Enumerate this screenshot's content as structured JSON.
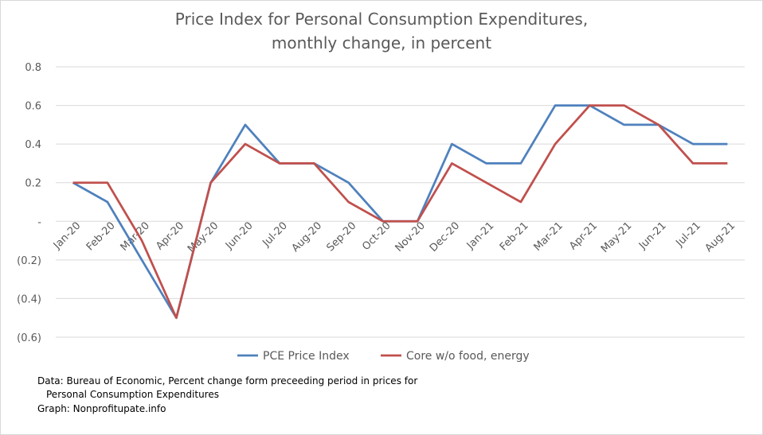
{
  "chart_data": {
    "type": "line",
    "title_line1": "Price Index for Personal Consumption Expenditures,",
    "title_line2": "monthly change, in percent",
    "categories": [
      "Jan-20",
      "Feb-20",
      "Mar-20",
      "Apr-20",
      "May-20",
      "Jun-20",
      "Jul-20",
      "Aug-20",
      "Sep-20",
      "Oct-20",
      "Nov-20",
      "Dec-20",
      "Jan-21",
      "Feb-21",
      "Mar-21",
      "Apr-21",
      "May-21",
      "Jun-21",
      "Jul-21",
      "Aug-21"
    ],
    "series": [
      {
        "name": "PCE Price Index",
        "color": "#4f81bd",
        "values": [
          0.2,
          0.1,
          -0.2,
          -0.5,
          0.2,
          0.5,
          0.3,
          0.3,
          0.2,
          0.0,
          0.0,
          0.4,
          0.3,
          0.3,
          0.6,
          0.6,
          0.5,
          0.5,
          0.4,
          0.4
        ]
      },
      {
        "name": "Core w/o food, energy",
        "color": "#c0504d",
        "values": [
          0.2,
          0.2,
          -0.1,
          -0.5,
          0.2,
          0.4,
          0.3,
          0.3,
          0.1,
          0.0,
          0.0,
          0.3,
          0.2,
          0.1,
          0.4,
          0.6,
          0.6,
          0.5,
          0.3,
          0.3
        ]
      }
    ],
    "y_ticks": [
      {
        "value": 0.8,
        "label": "0.8"
      },
      {
        "value": 0.6,
        "label": "0.6"
      },
      {
        "value": 0.4,
        "label": "0.4"
      },
      {
        "value": 0.2,
        "label": "0.2"
      },
      {
        "value": 0.0,
        "label": "-"
      },
      {
        "value": -0.2,
        "label": "(0.2)"
      },
      {
        "value": -0.4,
        "label": "(0.4)"
      },
      {
        "value": -0.6,
        "label": "(0.6)"
      }
    ],
    "ylim": [
      -0.6,
      0.8
    ],
    "grid": true,
    "legend_position": "bottom"
  },
  "footnote": {
    "line1": "Data: Bureau of Economic, Percent change form preceeding period in prices for",
    "line2": "Personal Consumption Expenditures",
    "line3": "Graph:  Nonprofitupate.info"
  }
}
